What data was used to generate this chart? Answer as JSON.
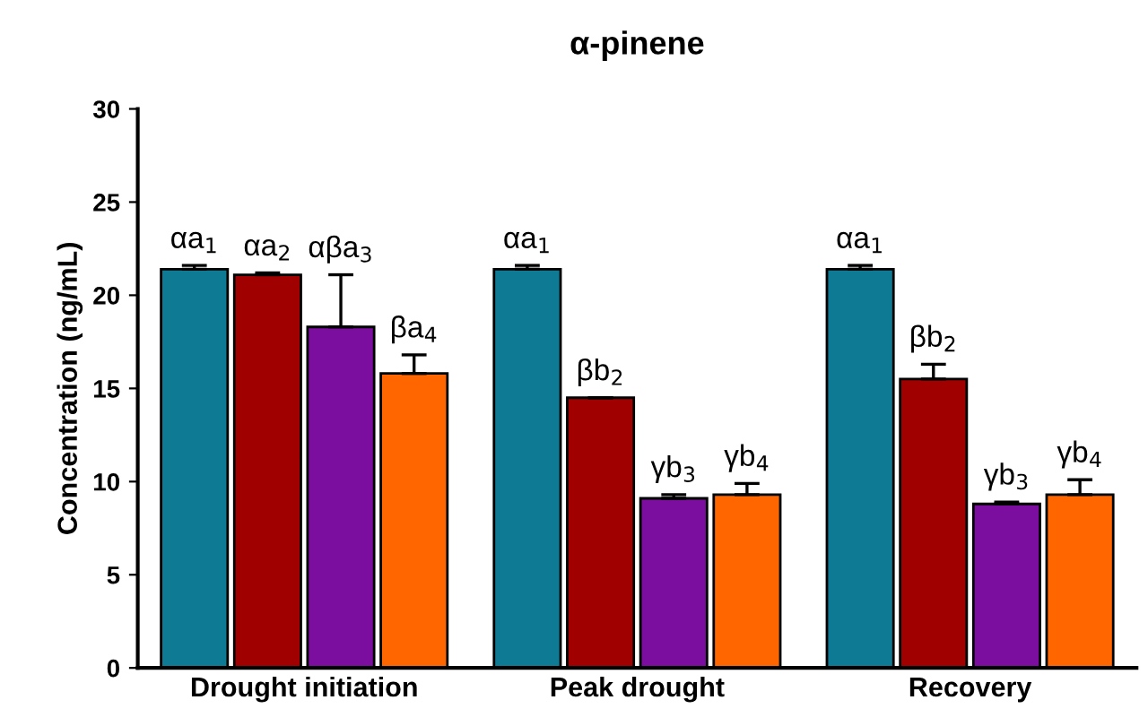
{
  "chart_data": {
    "type": "bar",
    "title": "α-pinene",
    "ylabel": "Concentration (ng/mL)",
    "categories": [
      "Drought initiation",
      "Peak drought",
      "Recovery"
    ],
    "ylim": [
      0,
      30
    ],
    "yticks": [
      0,
      5,
      10,
      15,
      20,
      25,
      30
    ],
    "grid": false,
    "series": [
      {
        "color": "#0f7a93",
        "values": [
          21.4,
          21.4,
          21.4
        ],
        "errors": [
          [
            21.4,
            21.6
          ],
          [
            21.4,
            21.6
          ],
          [
            21.4,
            21.6
          ]
        ]
      },
      {
        "color": "#a00000",
        "values": [
          21.1,
          14.5,
          15.5
        ],
        "errors": [
          [
            21.1,
            21.2
          ],
          [
            14.5,
            14.5
          ],
          [
            15.5,
            16.3
          ]
        ]
      },
      {
        "color": "#7b0d9f",
        "values": [
          18.3,
          9.1,
          8.8
        ],
        "errors": [
          [
            18.3,
            21.1
          ],
          [
            9.1,
            9.3
          ],
          [
            8.8,
            8.9
          ]
        ]
      },
      {
        "color": "#ff6600",
        "values": [
          15.8,
          9.3,
          9.3
        ],
        "errors": [
          [
            15.8,
            16.8
          ],
          [
            9.3,
            9.9
          ],
          [
            9.3,
            10.1
          ]
        ]
      }
    ],
    "annotations": [
      "αa$_{1}$",
      "αa$_{2}$",
      "αβa$_{3}$",
      "βa$_{4}$",
      "αa$_{1}$",
      "βb$_{2}$",
      "γb$_{3}$",
      "γb$_{4}$",
      "αa$_{1}$",
      "βb$_{2}$",
      "γb$_{3}$",
      "γb$_{4}$"
    ]
  }
}
